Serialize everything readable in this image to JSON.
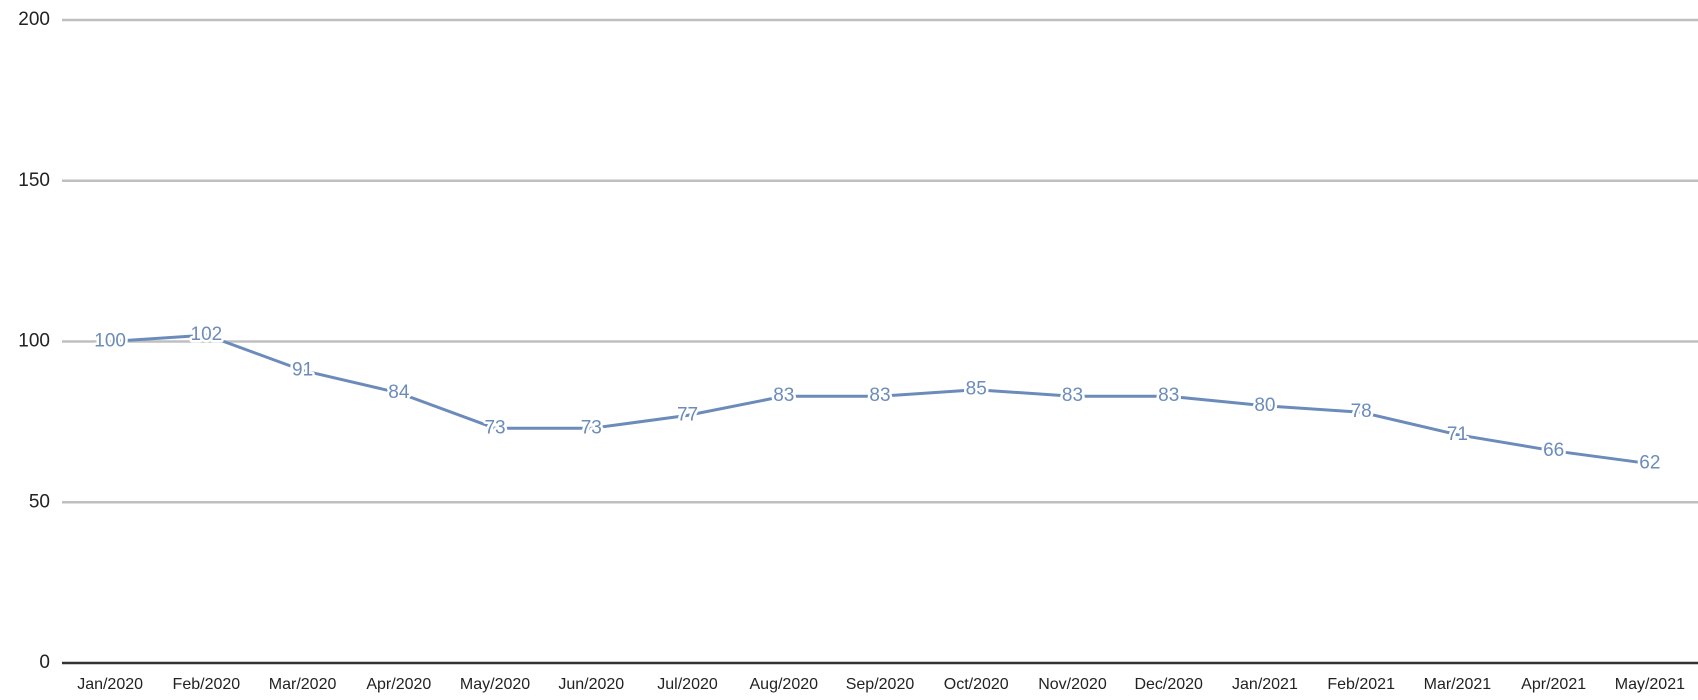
{
  "chart_data": {
    "type": "line",
    "categories": [
      "Jan/2020",
      "Feb/2020",
      "Mar/2020",
      "Apr/2020",
      "May/2020",
      "Jun/2020",
      "Jul/2020",
      "Aug/2020",
      "Sep/2020",
      "Oct/2020",
      "Nov/2020",
      "Dec/2020",
      "Jan/2021",
      "Feb/2021",
      "Mar/2021",
      "Apr/2021",
      "May/2021"
    ],
    "values": [
      100,
      102,
      91,
      84,
      73,
      73,
      77,
      83,
      83,
      85,
      83,
      83,
      80,
      78,
      71,
      66,
      62
    ],
    "color": "#6b8cba",
    "ylim": [
      0,
      200
    ],
    "yticks": [
      0,
      50,
      100,
      150,
      200
    ],
    "grid": true
  }
}
